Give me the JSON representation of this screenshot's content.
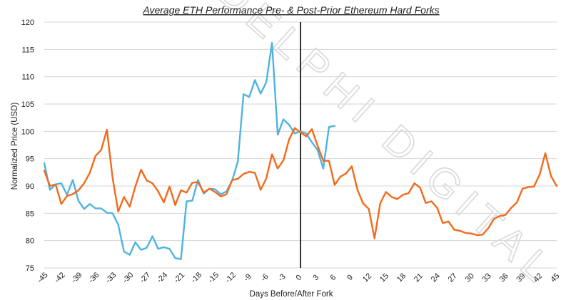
{
  "chart_data": {
    "type": "line",
    "title": "Average ETH Performance Pre- & Post-Prior Ethereum Hard Forks",
    "xlabel": "Days Before/After Fork",
    "ylabel": "Normalized Price (USD)",
    "watermark": "DELPHI DIGITAL",
    "ylim": [
      75,
      120
    ],
    "yticks": [
      75,
      80,
      85,
      90,
      95,
      100,
      105,
      110,
      115,
      120
    ],
    "xlim": [
      -45,
      45
    ],
    "xticks": [
      -45,
      -42,
      -39,
      -36,
      -33,
      -30,
      -27,
      -24,
      -21,
      -18,
      -15,
      -12,
      -9,
      -6,
      -3,
      0,
      3,
      6,
      9,
      12,
      15,
      18,
      21,
      24,
      27,
      30,
      33,
      36,
      39,
      42,
      45
    ],
    "grid": "horizontal",
    "fork_line_x": 0,
    "colors": {
      "blue": "#4fb3e0",
      "orange": "#f26a1b",
      "fork_line": "#333333"
    },
    "series": [
      {
        "color": "#4fb3e0",
        "x": [
          -45,
          -44,
          -43,
          -42,
          -41,
          -40,
          -39,
          -38,
          -37,
          -36,
          -35,
          -34,
          -33,
          -32,
          -31,
          -30,
          -29,
          -28,
          -27,
          -26,
          -25,
          -24,
          -23,
          -22,
          -21,
          -20,
          -19,
          -18,
          -17,
          -16,
          -15,
          -14,
          -13,
          -12,
          -11,
          -10,
          -9,
          -8,
          -7,
          -6,
          -5,
          -4,
          -3,
          -2,
          -1,
          0,
          1,
          2,
          3,
          4,
          5,
          6
        ],
        "values": [
          94.2,
          89.3,
          90.3,
          90.5,
          88.4,
          91.1,
          87.3,
          85.8,
          86.7,
          85.9,
          85.9,
          85.1,
          85.0,
          82.9,
          78.0,
          77.4,
          79.7,
          78.3,
          78.7,
          80.8,
          78.5,
          78.8,
          78.5,
          76.8,
          76.6,
          87.2,
          87.3,
          91.1,
          88.6,
          89.5,
          89.4,
          88.5,
          89.0,
          91.0,
          94.5,
          106.8,
          106.3,
          109.4,
          106.9,
          109.0,
          116.2,
          99.4,
          102.2,
          101.2,
          99.6,
          100.0,
          99.6,
          98.0,
          96.6,
          93.2,
          100.8,
          101.0
        ]
      },
      {
        "color": "#f26a1b",
        "x": [
          -45,
          -44,
          -43,
          -42,
          -41,
          -40,
          -39,
          -38,
          -37,
          -36,
          -35,
          -34,
          -33,
          -32,
          -31,
          -30,
          -29,
          -28,
          -27,
          -26,
          -25,
          -24,
          -23,
          -22,
          -21,
          -20,
          -19,
          -18,
          -17,
          -16,
          -15,
          -14,
          -13,
          -12,
          -11,
          -10,
          -9,
          -8,
          -7,
          -6,
          -5,
          -4,
          -3,
          -2,
          -1,
          0,
          1,
          2,
          3,
          4,
          5,
          6,
          7,
          8,
          9,
          10,
          11,
          12,
          13,
          14,
          15,
          16,
          17,
          18,
          19,
          20,
          21,
          22,
          23,
          24,
          25,
          26,
          27,
          28,
          29,
          30,
          31,
          32,
          33,
          34,
          35,
          36,
          37,
          38,
          39,
          40,
          41,
          42,
          43,
          44,
          45
        ],
        "values": [
          92.8,
          90.0,
          90.3,
          86.7,
          88.2,
          88.5,
          89.2,
          90.5,
          92.4,
          95.5,
          96.6,
          100.3,
          91.5,
          85.3,
          88.0,
          86.2,
          89.9,
          93.0,
          91.0,
          90.5,
          89.0,
          87.0,
          89.9,
          86.5,
          89.2,
          88.8,
          90.6,
          90.7,
          88.8,
          89.5,
          88.9,
          88.1,
          88.5,
          91.1,
          91.3,
          92.2,
          92.6,
          92.4,
          89.3,
          91.4,
          95.8,
          93.2,
          94.7,
          98.5,
          100.6,
          99.8,
          99.1,
          100.4,
          97.4,
          94.6,
          94.6,
          90.2,
          91.7,
          92.3,
          93.6,
          89.3,
          86.8,
          85.8,
          80.4,
          86.8,
          88.9,
          88.0,
          87.6,
          88.4,
          88.7,
          90.5,
          89.7,
          86.9,
          87.2,
          86.0,
          83.2,
          83.5,
          82.0,
          81.8,
          81.4,
          81.3,
          81.0,
          81.1,
          82.3,
          84.0,
          84.5,
          84.7,
          86.0,
          87.0,
          89.5,
          89.8,
          89.9,
          92.1,
          96.0,
          91.8,
          90.0
        ]
      }
    ]
  }
}
